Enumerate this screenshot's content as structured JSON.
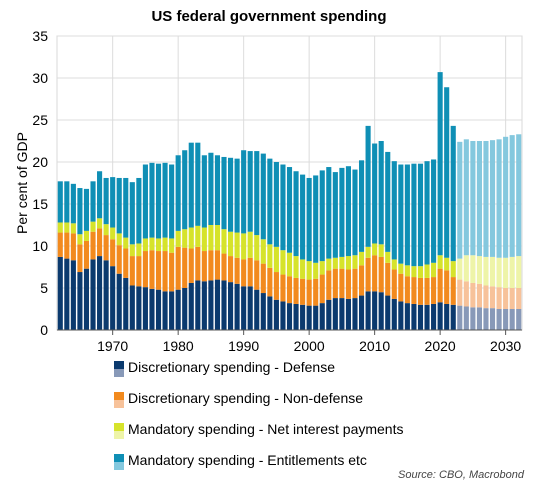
{
  "chart_data": {
    "type": "bar",
    "stacked": true,
    "title": "US federal government spending",
    "xlabel": "",
    "ylabel": "Per cent of GDP",
    "ylim": [
      0,
      35
    ],
    "yticks": [
      0,
      5,
      10,
      15,
      20,
      25,
      30,
      35
    ],
    "xticks": [
      1970,
      1980,
      1990,
      2000,
      2010,
      2020,
      2030
    ],
    "grid": true,
    "legend_position": "bottom",
    "source": "Source: CBO, Macrobond",
    "projection_start_year": 2023,
    "years": [
      1962,
      1963,
      1964,
      1965,
      1966,
      1967,
      1968,
      1969,
      1970,
      1971,
      1972,
      1973,
      1974,
      1975,
      1976,
      1977,
      1978,
      1979,
      1980,
      1981,
      1982,
      1983,
      1984,
      1985,
      1986,
      1987,
      1988,
      1989,
      1990,
      1991,
      1992,
      1993,
      1994,
      1995,
      1996,
      1997,
      1998,
      1999,
      2000,
      2001,
      2002,
      2003,
      2004,
      2005,
      2006,
      2007,
      2008,
      2009,
      2010,
      2011,
      2012,
      2013,
      2014,
      2015,
      2016,
      2017,
      2018,
      2019,
      2020,
      2021,
      2022,
      2023,
      2024,
      2025,
      2026,
      2027,
      2028,
      2029,
      2030,
      2031,
      2032
    ],
    "series": [
      {
        "name": "Discretionary spending - Defense",
        "color": "#0b3a6e",
        "projection_color": "#8899b8",
        "values": [
          8.7,
          8.5,
          8.3,
          6.9,
          7.3,
          8.4,
          8.8,
          8.3,
          7.6,
          6.7,
          6.2,
          5.3,
          5.2,
          5.1,
          4.9,
          4.8,
          4.6,
          4.6,
          4.8,
          5.0,
          5.6,
          5.9,
          5.8,
          5.9,
          6.0,
          5.9,
          5.7,
          5.5,
          5.2,
          5.2,
          4.8,
          4.4,
          4.0,
          3.6,
          3.4,
          3.2,
          3.1,
          3.0,
          2.9,
          2.9,
          3.2,
          3.6,
          3.8,
          3.8,
          3.7,
          3.8,
          4.1,
          4.6,
          4.6,
          4.5,
          4.1,
          3.7,
          3.4,
          3.2,
          3.1,
          3.0,
          3.0,
          3.1,
          3.3,
          3.1,
          3.0,
          2.9,
          2.8,
          2.7,
          2.7,
          2.6,
          2.6,
          2.5,
          2.5,
          2.5,
          2.5
        ]
      },
      {
        "name": "Discretionary spending - Non-defense",
        "color": "#f28a1e",
        "projection_color": "#f7c29a",
        "values": [
          2.9,
          3.1,
          3.2,
          3.3,
          3.3,
          3.3,
          3.3,
          3.0,
          3.2,
          3.4,
          3.5,
          3.5,
          3.6,
          4.3,
          4.6,
          4.6,
          4.8,
          4.6,
          5.1,
          4.8,
          4.1,
          4.0,
          3.6,
          3.6,
          3.5,
          3.2,
          3.1,
          3.1,
          3.2,
          3.4,
          3.5,
          3.5,
          3.4,
          3.3,
          3.2,
          3.2,
          3.1,
          3.1,
          3.1,
          3.2,
          3.4,
          3.5,
          3.5,
          3.5,
          3.5,
          3.5,
          3.6,
          4.0,
          4.3,
          4.2,
          3.9,
          3.5,
          3.3,
          3.2,
          3.2,
          3.2,
          3.2,
          3.2,
          4.0,
          4.0,
          3.3,
          3.1,
          3.0,
          2.9,
          2.8,
          2.7,
          2.6,
          2.6,
          2.5,
          2.5,
          2.5
        ]
      },
      {
        "name": "Mandatory spending - Net interest payments",
        "color": "#d6e32b",
        "projection_color": "#eef4a8",
        "values": [
          1.2,
          1.2,
          1.2,
          1.2,
          1.2,
          1.2,
          1.2,
          1.3,
          1.4,
          1.4,
          1.3,
          1.4,
          1.5,
          1.5,
          1.5,
          1.5,
          1.6,
          1.7,
          1.9,
          2.2,
          2.5,
          2.5,
          2.8,
          3.0,
          3.0,
          2.9,
          2.9,
          3.0,
          3.1,
          3.1,
          3.0,
          2.9,
          2.8,
          3.0,
          2.9,
          2.8,
          2.6,
          2.3,
          2.2,
          1.9,
          1.6,
          1.4,
          1.3,
          1.4,
          1.6,
          1.6,
          1.6,
          1.3,
          1.4,
          1.5,
          1.3,
          1.2,
          1.2,
          1.3,
          1.3,
          1.4,
          1.6,
          1.7,
          1.6,
          1.5,
          1.9,
          2.5,
          3.1,
          3.3,
          3.3,
          3.4,
          3.5,
          3.5,
          3.6,
          3.7,
          3.8
        ]
      },
      {
        "name": "Mandatory spending - Entitlements etc",
        "color": "#0f8fb5",
        "projection_color": "#84c8de",
        "values": [
          4.9,
          4.9,
          4.7,
          5.5,
          5.0,
          4.8,
          5.6,
          5.5,
          6.0,
          6.6,
          7.1,
          7.4,
          7.8,
          8.8,
          8.9,
          8.9,
          8.9,
          8.8,
          9.0,
          9.4,
          10.1,
          9.9,
          8.6,
          8.6,
          8.3,
          8.6,
          8.8,
          8.8,
          9.9,
          9.6,
          10.0,
          10.2,
          10.2,
          10.1,
          10.2,
          10.2,
          10.1,
          10.1,
          9.9,
          10.4,
          10.8,
          10.9,
          10.2,
          10.6,
          10.7,
          10.2,
          10.9,
          14.4,
          11.9,
          12.3,
          11.9,
          11.7,
          11.8,
          12.0,
          12.2,
          12.2,
          12.3,
          12.3,
          21.8,
          20.3,
          16.1,
          13.9,
          13.8,
          13.6,
          13.7,
          13.8,
          13.9,
          14.1,
          14.4,
          14.5,
          14.5
        ]
      }
    ]
  }
}
